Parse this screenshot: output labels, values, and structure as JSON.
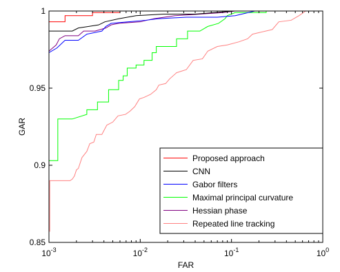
{
  "chart_data": {
    "type": "line",
    "title": "",
    "xlabel": "FAR",
    "ylabel": "GAR",
    "x_scale": "log",
    "xlim": [
      0.001,
      1
    ],
    "ylim": [
      0.85,
      1
    ],
    "x_ticks": [
      {
        "value": 0.001,
        "base": "10",
        "exp": "-3"
      },
      {
        "value": 0.01,
        "base": "10",
        "exp": "-2"
      },
      {
        "value": 0.1,
        "base": "10",
        "exp": "-1"
      },
      {
        "value": 1,
        "base": "10",
        "exp": "0"
      }
    ],
    "y_ticks": [
      {
        "value": 0.85,
        "label": "0.85"
      },
      {
        "value": 0.9,
        "label": "0.9"
      },
      {
        "value": 0.95,
        "label": "0.95"
      },
      {
        "value": 1,
        "label": "1"
      }
    ],
    "grid": false,
    "legend_position": "bottom-right",
    "series": [
      {
        "name": "Proposed approach",
        "color": "#ff0000",
        "points": [
          [
            0.001,
            0.993
          ],
          [
            0.0015,
            0.993
          ],
          [
            0.0015,
            0.997
          ],
          [
            0.003,
            0.997
          ],
          [
            0.003,
            0.999
          ],
          [
            0.006,
            0.999
          ],
          [
            0.006,
            1.0
          ],
          [
            1,
            1.0
          ]
        ]
      },
      {
        "name": "CNN",
        "color": "#000000",
        "points": [
          [
            0.001,
            0.987
          ],
          [
            0.0018,
            0.987
          ],
          [
            0.0021,
            0.989
          ],
          [
            0.0035,
            0.991
          ],
          [
            0.0041,
            0.993
          ],
          [
            0.0058,
            0.995
          ],
          [
            0.009,
            0.997
          ],
          [
            0.018,
            0.998
          ],
          [
            0.04,
            0.998
          ],
          [
            0.065,
            0.999
          ],
          [
            0.105,
            1.0
          ],
          [
            1,
            1.0
          ]
        ]
      },
      {
        "name": "Gabor filters",
        "color": "#0000ff",
        "points": [
          [
            0.001,
            0.973
          ],
          [
            0.00122,
            0.976
          ],
          [
            0.0015,
            0.981
          ],
          [
            0.0021,
            0.981
          ],
          [
            0.0026,
            0.985
          ],
          [
            0.0038,
            0.987
          ],
          [
            0.0042,
            0.99
          ],
          [
            0.0048,
            0.992
          ],
          [
            0.0075,
            0.993
          ],
          [
            0.0115,
            0.994
          ],
          [
            0.0155,
            0.995
          ],
          [
            0.032,
            0.996
          ],
          [
            0.07,
            0.996
          ],
          [
            0.11,
            0.997
          ],
          [
            0.18,
            1.0
          ],
          [
            1,
            1.0
          ]
        ]
      },
      {
        "name": "Maximal principal curvature",
        "color": "#00ff00",
        "points": [
          [
            0.001,
            0.888
          ],
          [
            0.001,
            0.903
          ],
          [
            0.00125,
            0.903
          ],
          [
            0.00125,
            0.93
          ],
          [
            0.0018,
            0.93
          ],
          [
            0.0026,
            0.933
          ],
          [
            0.0026,
            0.936
          ],
          [
            0.0034,
            0.936
          ],
          [
            0.0034,
            0.941
          ],
          [
            0.0045,
            0.941
          ],
          [
            0.0045,
            0.949
          ],
          [
            0.0058,
            0.949
          ],
          [
            0.0058,
            0.955
          ],
          [
            0.0065,
            0.955
          ],
          [
            0.0065,
            0.958
          ],
          [
            0.0072,
            0.958
          ],
          [
            0.0072,
            0.963
          ],
          [
            0.009,
            0.963
          ],
          [
            0.009,
            0.965
          ],
          [
            0.011,
            0.965
          ],
          [
            0.011,
            0.968
          ],
          [
            0.0135,
            0.968
          ],
          [
            0.0135,
            0.973
          ],
          [
            0.015,
            0.973
          ],
          [
            0.015,
            0.977
          ],
          [
            0.025,
            0.977
          ],
          [
            0.025,
            0.982
          ],
          [
            0.033,
            0.982
          ],
          [
            0.033,
            0.987
          ],
          [
            0.045,
            0.987
          ],
          [
            0.055,
            0.99
          ],
          [
            0.072,
            0.992
          ],
          [
            0.085,
            0.995
          ],
          [
            0.09,
            0.997
          ],
          [
            0.11,
            0.999
          ],
          [
            0.24,
            0.999
          ],
          [
            0.24,
            1.0
          ],
          [
            1,
            1.0
          ]
        ]
      },
      {
        "name": "Hessian phase",
        "color": "#800080",
        "points": [
          [
            0.001,
            0.974
          ],
          [
            0.0012,
            0.978
          ],
          [
            0.0013,
            0.982
          ],
          [
            0.0015,
            0.984
          ],
          [
            0.0021,
            0.984
          ],
          [
            0.0024,
            0.987
          ],
          [
            0.0032,
            0.987
          ],
          [
            0.0042,
            0.989
          ],
          [
            0.0048,
            0.991
          ],
          [
            0.0058,
            0.992
          ],
          [
            0.01,
            0.993
          ],
          [
            0.014,
            0.995
          ],
          [
            0.024,
            0.997
          ],
          [
            0.045,
            0.998
          ],
          [
            0.08,
            0.999
          ],
          [
            0.11,
            1.0
          ],
          [
            1,
            1.0
          ]
        ]
      },
      {
        "name": "Repeated line tracking",
        "color": "#ff8080",
        "points": [
          [
            0.00102,
            0.857
          ],
          [
            0.00102,
            0.89
          ],
          [
            0.0017,
            0.89
          ],
          [
            0.0018,
            0.891
          ],
          [
            0.0019,
            0.893
          ],
          [
            0.002,
            0.897
          ],
          [
            0.0021,
            0.898
          ],
          [
            0.0023,
            0.905
          ],
          [
            0.0026,
            0.909
          ],
          [
            0.0028,
            0.914
          ],
          [
            0.0031,
            0.915
          ],
          [
            0.0033,
            0.92
          ],
          [
            0.0038,
            0.92
          ],
          [
            0.0043,
            0.926
          ],
          [
            0.005,
            0.928
          ],
          [
            0.0057,
            0.932
          ],
          [
            0.0069,
            0.933
          ],
          [
            0.0077,
            0.935
          ],
          [
            0.0087,
            0.938
          ],
          [
            0.0098,
            0.943
          ],
          [
            0.011,
            0.944
          ],
          [
            0.013,
            0.946
          ],
          [
            0.015,
            0.949
          ],
          [
            0.016,
            0.952
          ],
          [
            0.019,
            0.953
          ],
          [
            0.021,
            0.956
          ],
          [
            0.025,
            0.96
          ],
          [
            0.032,
            0.962
          ],
          [
            0.038,
            0.968
          ],
          [
            0.048,
            0.969
          ],
          [
            0.055,
            0.974
          ],
          [
            0.07,
            0.977
          ],
          [
            0.09,
            0.978
          ],
          [
            0.12,
            0.98
          ],
          [
            0.15,
            0.982
          ],
          [
            0.17,
            0.985
          ],
          [
            0.2,
            0.986
          ],
          [
            0.28,
            0.988
          ],
          [
            0.33,
            0.993
          ],
          [
            0.45,
            0.994
          ],
          [
            0.55,
            0.997
          ],
          [
            0.65,
            1.0
          ],
          [
            1,
            1.0
          ]
        ]
      }
    ]
  }
}
